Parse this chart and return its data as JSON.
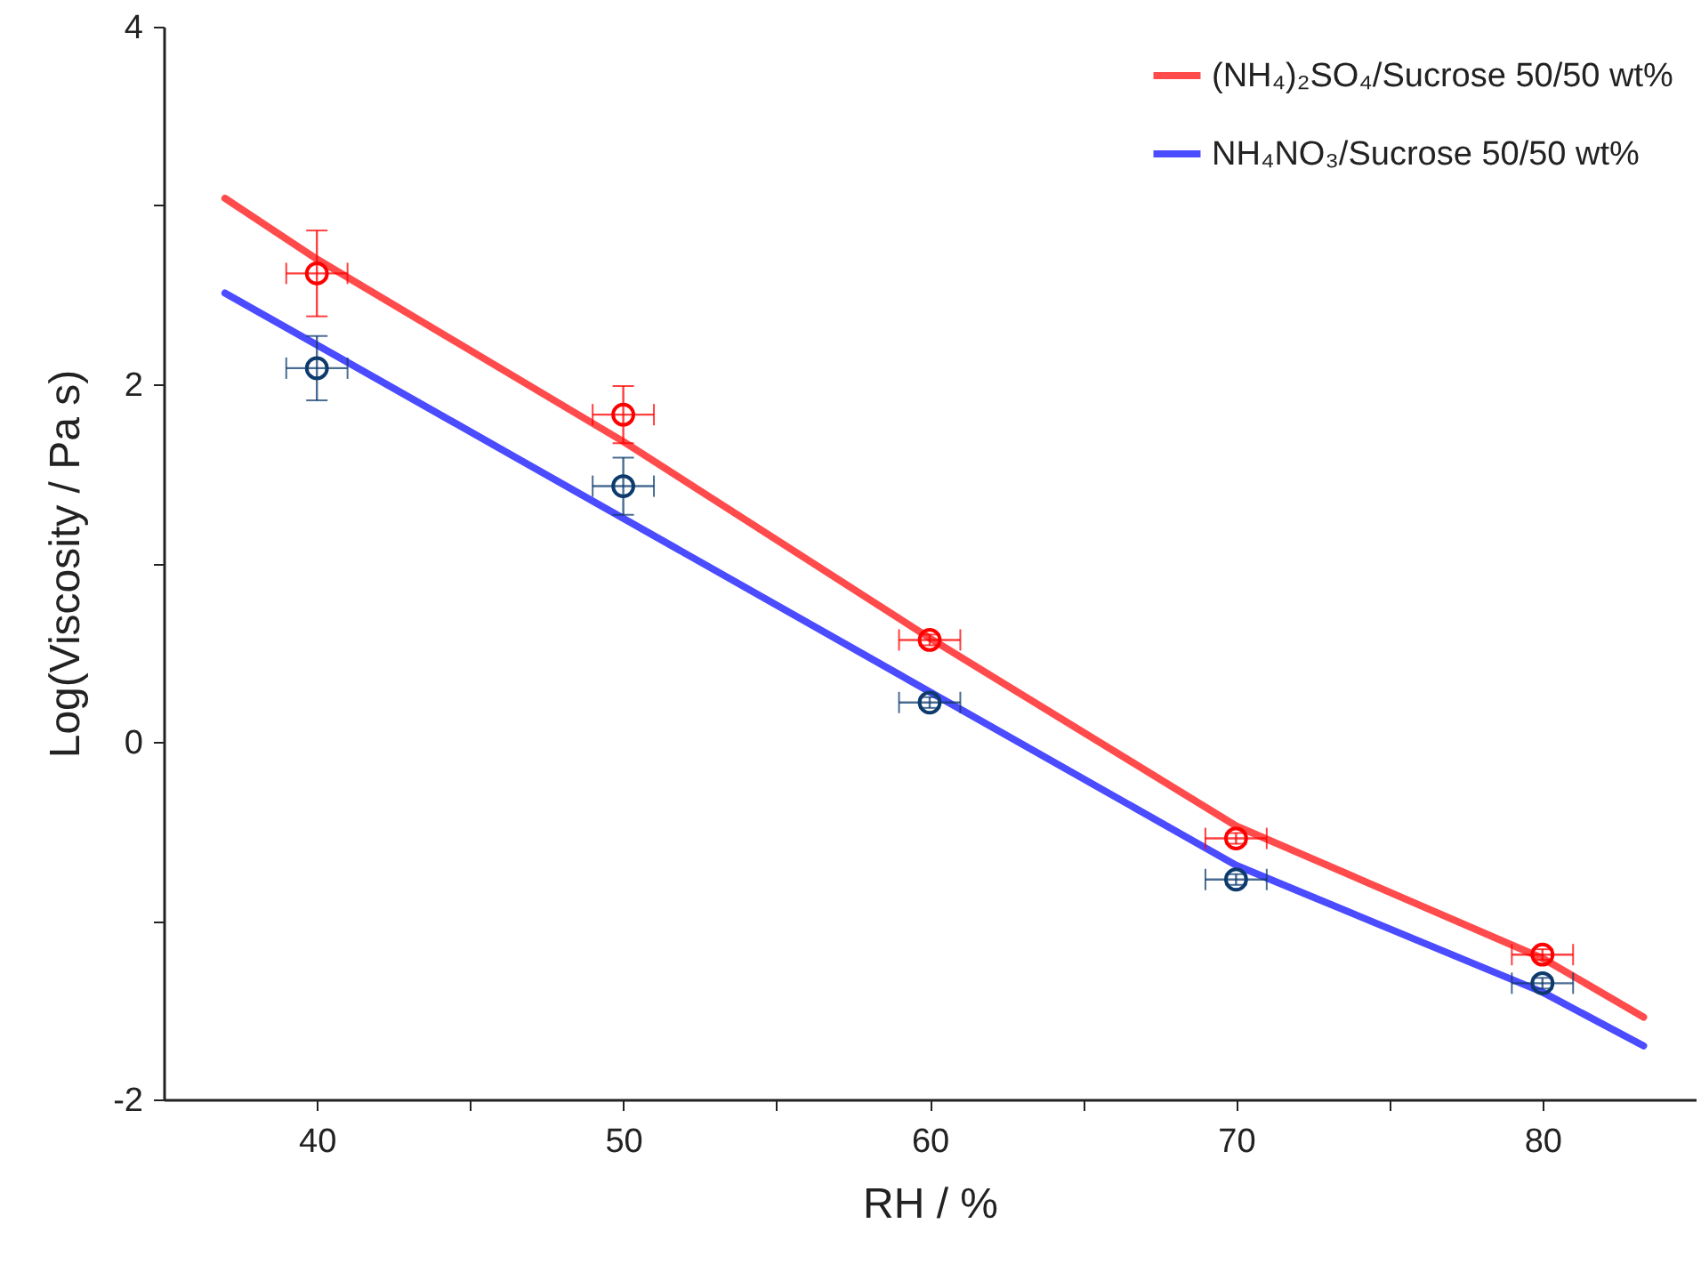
{
  "chart_data": {
    "type": "scatter",
    "xlabel": "RH / %",
    "ylabel": "Log(Viscosity / Pa s)",
    "xlim": [
      35,
      85
    ],
    "xticks": [
      40,
      {
        "value": 45,
        "label": null
      },
      50,
      {
        "value": 55,
        "label": null
      },
      60,
      {
        "value": 65,
        "label": null
      },
      70,
      {
        "value": 75,
        "label": null
      },
      80
    ],
    "ylim": [
      -2,
      4
    ],
    "yticks": [
      -2,
      {
        "value": -1,
        "label": null
      },
      0,
      {
        "value": 1,
        "label": null
      },
      2,
      {
        "value": 3,
        "label": null
      },
      4
    ],
    "legend": "top right",
    "grid": false,
    "series": [
      {
        "type": "line",
        "marker": "none",
        "name": "(NH₄)₂SO₄/Sucrose 50/50 wt%",
        "color": "#ff4b4b",
        "x": [
          37,
          40,
          50,
          60,
          70,
          80,
          83.3
        ],
        "values": [
          3.04,
          2.7,
          1.68,
          0.58,
          -0.47,
          -1.21,
          -1.54
        ]
      },
      {
        "type": "line",
        "marker": "none",
        "name": "NH₄NO₃/Sucrose 50/50 wt%",
        "color": "#4b4bff",
        "x": [
          37,
          40,
          50,
          60,
          70,
          80,
          83.3
        ],
        "values": [
          2.51,
          2.22,
          1.25,
          0.28,
          -0.69,
          -1.4,
          -1.7
        ]
      },
      {
        "marker": "circle",
        "color": "#ff0000",
        "x": [
          40,
          50,
          60,
          70,
          80
        ],
        "values": [
          2.62,
          1.83,
          0.57,
          -0.54,
          -1.19
        ],
        "errors": [
          0.24,
          0.16,
          0.03,
          0.03,
          0.03
        ],
        "xerrors": [
          1,
          1,
          1,
          1,
          1
        ]
      },
      {
        "marker": "circle",
        "color": "#0d3b6e",
        "x": [
          40,
          50,
          60,
          70,
          80
        ],
        "values": [
          2.09,
          1.43,
          0.22,
          -0.77,
          -1.35
        ],
        "errors": [
          0.18,
          0.16,
          0.03,
          0.03,
          0.03
        ],
        "xerrors": [
          1,
          1,
          1,
          1,
          1
        ]
      }
    ]
  }
}
